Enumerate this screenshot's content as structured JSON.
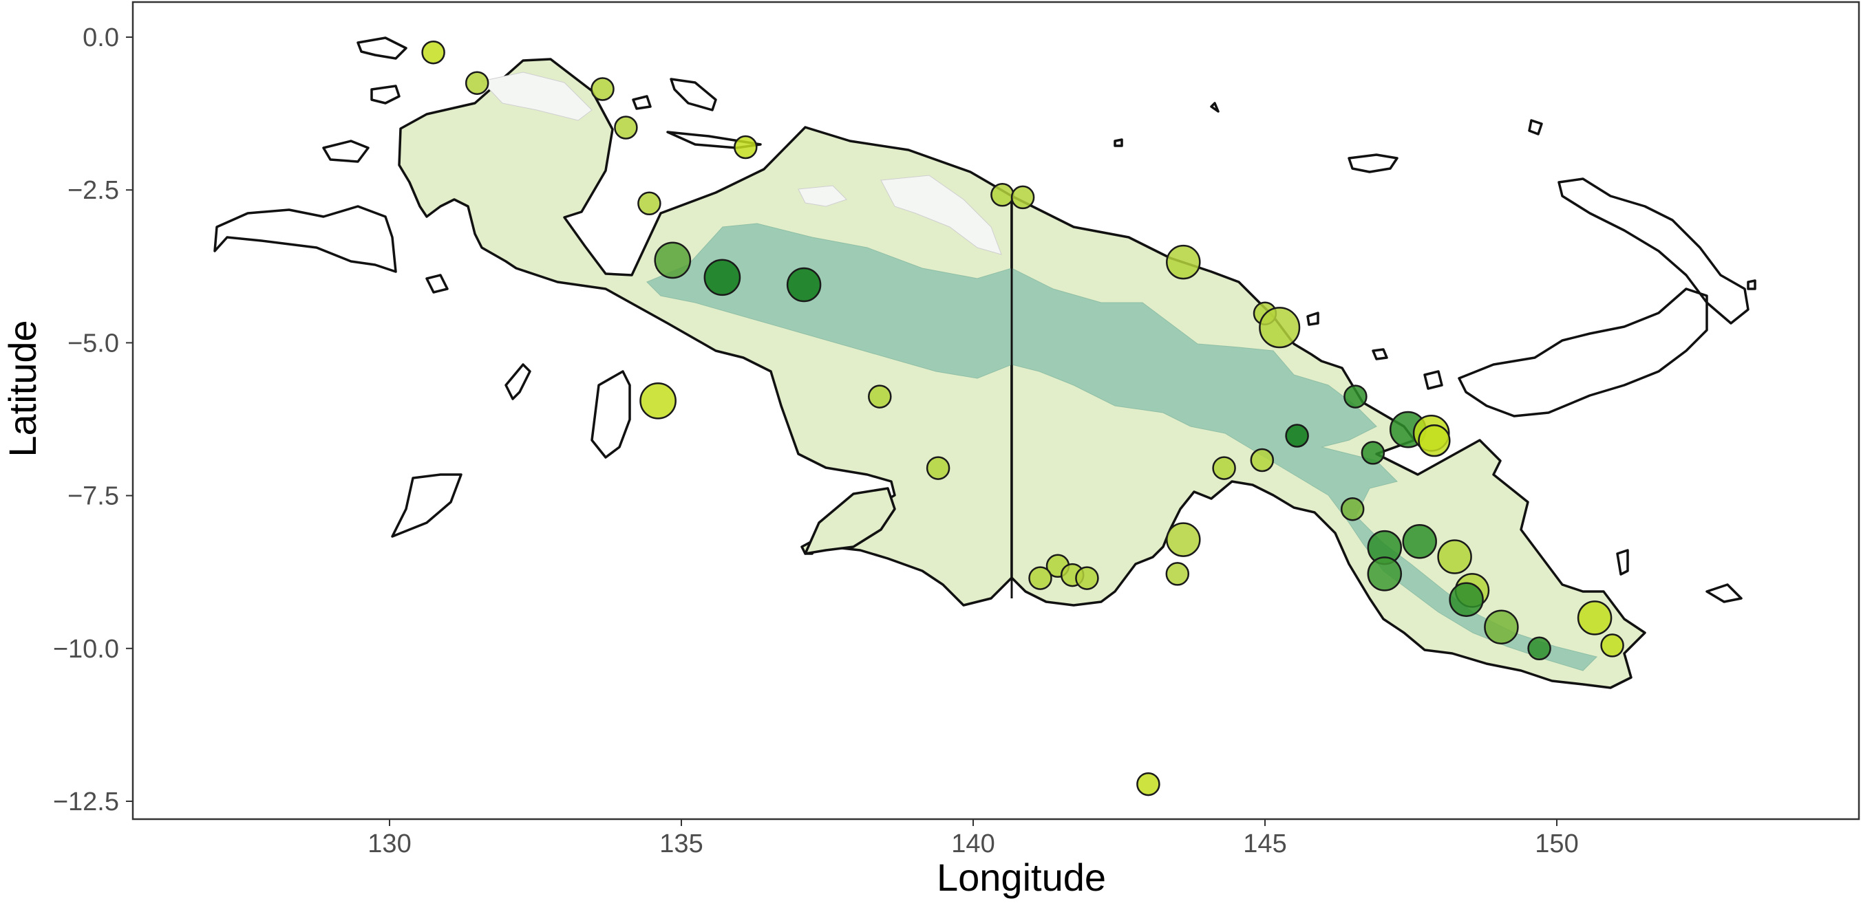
{
  "chart_data": {
    "type": "scatter",
    "subtype": "map-bubble",
    "title": "",
    "xlabel": "Longitude",
    "ylabel": "Latitude",
    "xlim": [
      126.5,
      154.0
    ],
    "ylim": [
      -12.75,
      0.6
    ],
    "x_ticks": [
      130,
      135,
      140,
      145,
      150
    ],
    "y_ticks": [
      0.0,
      -2.5,
      -5.0,
      -7.5,
      -10.0,
      -12.5
    ],
    "x_tick_labels": [
      "130",
      "135",
      "140",
      "145",
      "150"
    ],
    "y_tick_labels": [
      "0.0",
      "−2.5",
      "−5.0",
      "−7.5",
      "−10.0",
      "−12.5"
    ],
    "grid": false,
    "legend": "none",
    "colors": {
      "land": "#e2edc9",
      "highland": "#9ecbb4",
      "lowland_gap": "#f4f6f4",
      "coastline": "#111111",
      "point_light": "#c3de1e",
      "point_mid": "#58a23a",
      "point_dark": "#0f7d1a"
    },
    "points": [
      {
        "lon": 130.75,
        "lat": -0.25,
        "size": 1.0,
        "color": "#c3de1e"
      },
      {
        "lon": 131.5,
        "lat": -0.75,
        "size": 1.0,
        "color": "#b4d33c"
      },
      {
        "lon": 133.65,
        "lat": -0.85,
        "size": 1.0,
        "color": "#b4d33c"
      },
      {
        "lon": 134.05,
        "lat": -1.48,
        "size": 1.0,
        "color": "#b4d33c"
      },
      {
        "lon": 136.1,
        "lat": -1.8,
        "size": 1.0,
        "color": "#c3de1e"
      },
      {
        "lon": 134.45,
        "lat": -2.72,
        "size": 1.0,
        "color": "#b4d33c"
      },
      {
        "lon": 134.85,
        "lat": -3.65,
        "size": 1.6,
        "color": "#58a23a"
      },
      {
        "lon": 135.7,
        "lat": -3.93,
        "size": 1.6,
        "color": "#0f7d1a"
      },
      {
        "lon": 137.1,
        "lat": -4.05,
        "size": 1.5,
        "color": "#0f7d1a"
      },
      {
        "lon": 140.5,
        "lat": -2.58,
        "size": 1.0,
        "color": "#b4d33c"
      },
      {
        "lon": 140.85,
        "lat": -2.62,
        "size": 1.0,
        "color": "#b4d33c"
      },
      {
        "lon": 143.6,
        "lat": -3.68,
        "size": 1.5,
        "color": "#b4d33c"
      },
      {
        "lon": 145.0,
        "lat": -4.52,
        "size": 1.0,
        "color": "#b4d33c"
      },
      {
        "lon": 145.25,
        "lat": -4.75,
        "size": 1.8,
        "color": "#b4d33c"
      },
      {
        "lon": 134.6,
        "lat": -5.95,
        "size": 1.6,
        "color": "#c3de1e"
      },
      {
        "lon": 138.4,
        "lat": -5.88,
        "size": 1.0,
        "color": "#b4d33c"
      },
      {
        "lon": 139.4,
        "lat": -7.05,
        "size": 1.0,
        "color": "#b4d33c"
      },
      {
        "lon": 146.55,
        "lat": -5.88,
        "size": 1.0,
        "color": "#2f8f2c"
      },
      {
        "lon": 145.55,
        "lat": -6.52,
        "size": 1.0,
        "color": "#0f7d1a"
      },
      {
        "lon": 146.85,
        "lat": -6.8,
        "size": 1.0,
        "color": "#2f8f2c"
      },
      {
        "lon": 147.45,
        "lat": -6.42,
        "size": 1.6,
        "color": "#2f8f2c"
      },
      {
        "lon": 147.85,
        "lat": -6.48,
        "size": 1.6,
        "color": "#c3de1e"
      },
      {
        "lon": 147.9,
        "lat": -6.6,
        "size": 1.4,
        "color": "#c3de1e"
      },
      {
        "lon": 144.3,
        "lat": -7.05,
        "size": 1.0,
        "color": "#b4d33c"
      },
      {
        "lon": 144.95,
        "lat": -6.92,
        "size": 1.0,
        "color": "#b4d33c"
      },
      {
        "lon": 146.5,
        "lat": -7.72,
        "size": 1.0,
        "color": "#78b43a"
      },
      {
        "lon": 143.6,
        "lat": -8.22,
        "size": 1.5,
        "color": "#b4d33c"
      },
      {
        "lon": 143.5,
        "lat": -8.78,
        "size": 1.0,
        "color": "#b4d33c"
      },
      {
        "lon": 141.45,
        "lat": -8.65,
        "size": 1.0,
        "color": "#b4d33c"
      },
      {
        "lon": 141.15,
        "lat": -8.85,
        "size": 1.0,
        "color": "#b4d33c"
      },
      {
        "lon": 141.7,
        "lat": -8.8,
        "size": 1.0,
        "color": "#b4d33c"
      },
      {
        "lon": 141.95,
        "lat": -8.85,
        "size": 1.0,
        "color": "#b4d33c"
      },
      {
        "lon": 147.05,
        "lat": -8.35,
        "size": 1.5,
        "color": "#2f8f2c"
      },
      {
        "lon": 147.65,
        "lat": -8.25,
        "size": 1.5,
        "color": "#2f8f2c"
      },
      {
        "lon": 147.05,
        "lat": -8.78,
        "size": 1.5,
        "color": "#3f9a34"
      },
      {
        "lon": 148.25,
        "lat": -8.5,
        "size": 1.5,
        "color": "#b4d33c"
      },
      {
        "lon": 148.55,
        "lat": -9.05,
        "size": 1.5,
        "color": "#b4d33c"
      },
      {
        "lon": 148.45,
        "lat": -9.2,
        "size": 1.5,
        "color": "#2f8f2c"
      },
      {
        "lon": 149.05,
        "lat": -9.65,
        "size": 1.5,
        "color": "#78b43a"
      },
      {
        "lon": 149.7,
        "lat": -10.0,
        "size": 1.0,
        "color": "#2f8f2c"
      },
      {
        "lon": 150.65,
        "lat": -9.5,
        "size": 1.5,
        "color": "#c3de1e"
      },
      {
        "lon": 150.95,
        "lat": -9.95,
        "size": 1.0,
        "color": "#c3de1e"
      },
      {
        "lon": 143.0,
        "lat": -12.22,
        "size": 1.0,
        "color": "#c3de1e"
      }
    ]
  }
}
